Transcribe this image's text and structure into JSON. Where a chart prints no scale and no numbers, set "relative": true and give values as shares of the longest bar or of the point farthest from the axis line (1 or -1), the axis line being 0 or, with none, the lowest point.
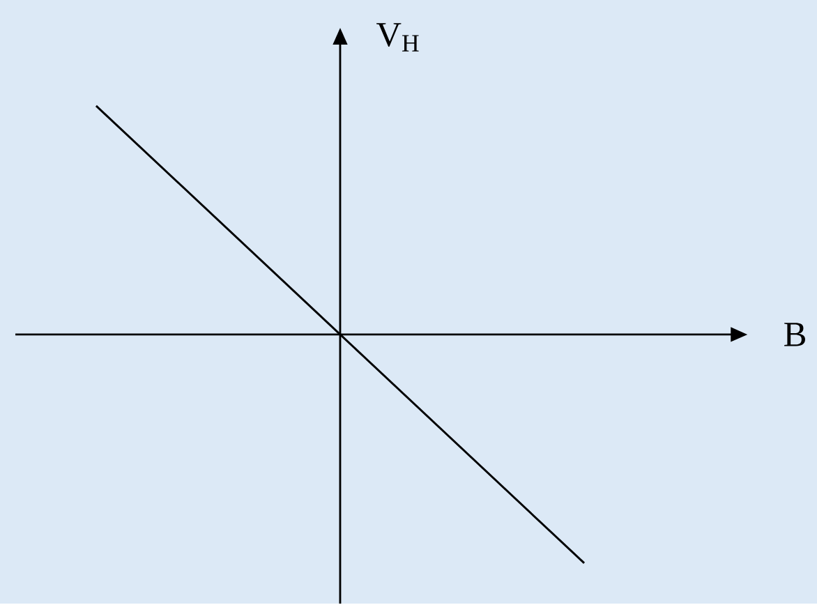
{
  "chart_data": {
    "type": "line",
    "xlabel": "B",
    "ylabel": "V$_{H}$",
    "relative": true,
    "categories": [
      null,
      null,
      null
    ],
    "series": [
      {
        "color": "#000000",
        "values": [
          1,
          0,
          -1
        ]
      }
    ]
  }
}
